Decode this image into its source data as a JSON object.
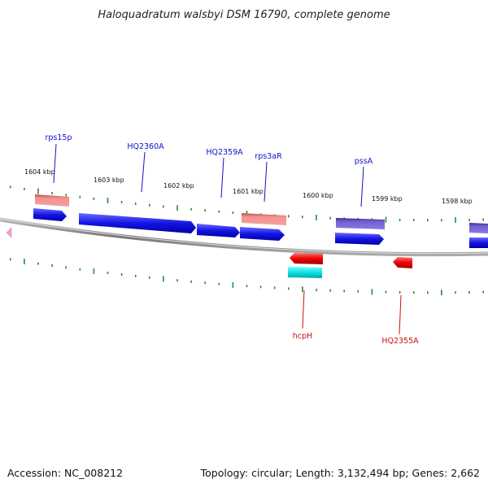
{
  "title": "Haloquadratum walsbyi DSM 16790, complete genome",
  "footer": {
    "accession": "Accession: NC_008212",
    "summary": "Topology: circular; Length: 3,132,494 bp; Genes: 2,662"
  },
  "colors": {
    "backbone": "#888888",
    "tick": "#2e8b2e",
    "forward_label": "#1010cc",
    "reverse_label": "#cc1010",
    "cds_forward": "#1010e0",
    "cds_reverse": "#ee0000",
    "feature_pink": "#f08888",
    "feature_violet": "#6a5acd",
    "feature_cyan": "#10e0e0"
  },
  "scale_labels": [
    "1604 kbp",
    "1603 kbp",
    "1602 kbp",
    "1601 kbp",
    "1600 kbp",
    "1599 kbp",
    "1598 kbp"
  ],
  "gene_labels": [
    {
      "text": "rps15p",
      "strand": "forward"
    },
    {
      "text": "HQ2360A",
      "strand": "forward"
    },
    {
      "text": "HQ2359A",
      "strand": "forward"
    },
    {
      "text": "rps3aR",
      "strand": "forward"
    },
    {
      "text": "pssA",
      "strand": "forward"
    },
    {
      "text": "hcpH",
      "strand": "reverse"
    },
    {
      "text": "HQ2355A",
      "strand": "reverse"
    }
  ]
}
